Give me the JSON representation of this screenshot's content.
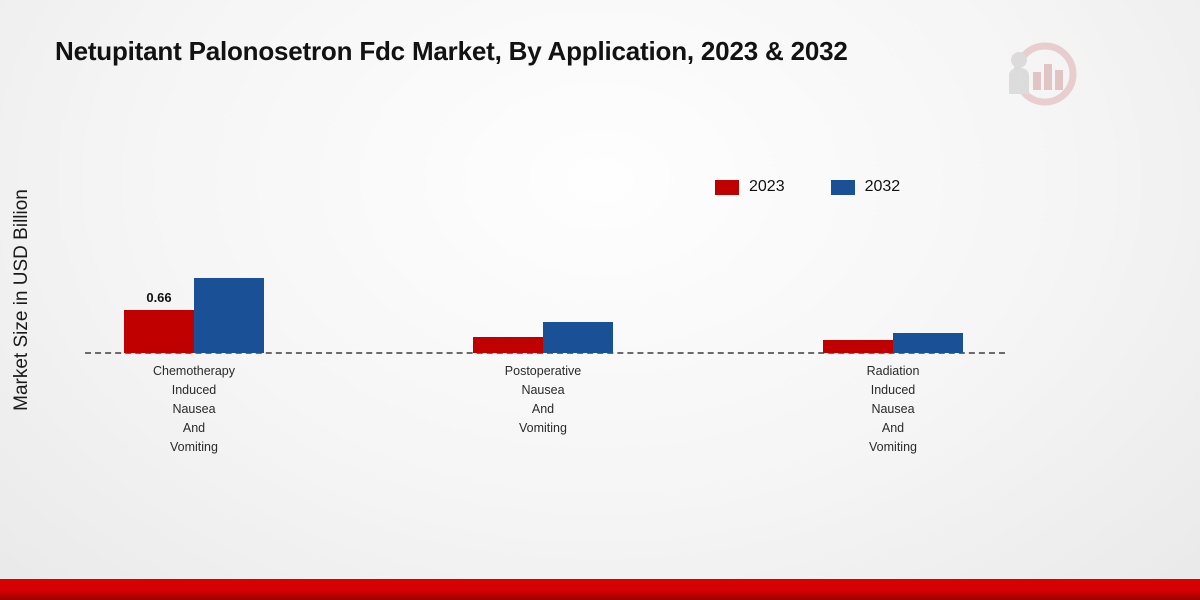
{
  "title": "Netupitant Palonosetron Fdc Market, By Application, 2023 & 2032",
  "ylabel": "Market Size in USD Billion",
  "legend": [
    {
      "label": "2023",
      "color": "#c00000"
    },
    {
      "label": "2032",
      "color": "#1a5096"
    }
  ],
  "chart_data": {
    "type": "bar",
    "title": "Netupitant Palonosetron Fdc Market, By Application, 2023 & 2032",
    "xlabel": "",
    "ylabel": "Market Size in USD Billion",
    "categories": [
      "Chemotherapy Induced Nausea And Vomiting",
      "Postoperative Nausea And Vomiting",
      "Radiation Induced Nausea And Vomiting"
    ],
    "series": [
      {
        "name": "2023",
        "color": "#c00000",
        "values": [
          0.66,
          0.25,
          0.2
        ]
      },
      {
        "name": "2032",
        "color": "#1a5096",
        "values": [
          1.15,
          0.47,
          0.3
        ]
      }
    ],
    "data_labels": [
      {
        "series_index": 0,
        "category_index": 0,
        "text": "0.66"
      }
    ],
    "ylim": [
      0,
      1.4
    ],
    "grid": false,
    "legend_position": "top-right",
    "baseline_style": "dashed"
  }
}
